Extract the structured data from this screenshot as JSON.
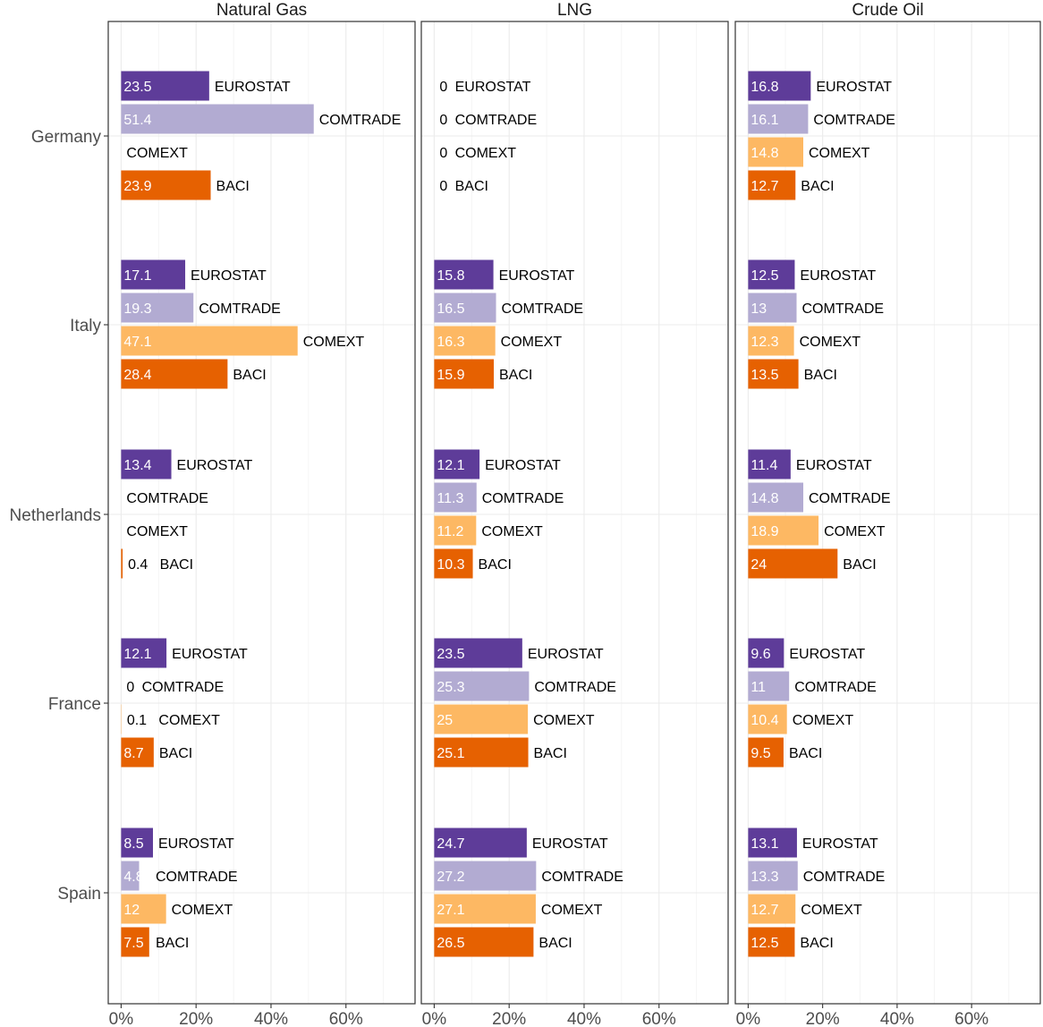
{
  "chart_data": {
    "type": "bar",
    "orientation": "horizontal",
    "facets": [
      "Natural Gas",
      "LNG",
      "Crude Oil"
    ],
    "categories": [
      "Germany",
      "Italy",
      "Netherlands",
      "France",
      "Spain"
    ],
    "xlim": [
      0,
      75
    ],
    "x_ticks": [
      0,
      20,
      40,
      60
    ],
    "x_tick_labels": [
      "0%",
      "20%",
      "40%",
      "60%"
    ],
    "grid": true,
    "colors": {
      "EUROSTAT": "#5e3c99",
      "COMTRADE": "#b2abd2",
      "COMEXT": "#fdb863",
      "BACI": "#e66101"
    },
    "series": [
      {
        "name": "EUROSTAT",
        "values": {
          "Natural Gas": [
            23.5,
            17.1,
            13.4,
            12.1,
            8.5
          ],
          "LNG": [
            0,
            15.8,
            12.1,
            23.5,
            24.7
          ],
          "Crude Oil": [
            16.8,
            12.5,
            11.4,
            9.6,
            13.1
          ]
        },
        "labels": {
          "Natural Gas": [
            "23.5",
            "17.1",
            "13.4",
            "12.1",
            "8.5"
          ],
          "LNG": [
            "0",
            "15.8",
            "12.1",
            "23.5",
            "24.7"
          ],
          "Crude Oil": [
            "16.8",
            "12.5",
            "11.4",
            "9.6",
            "13.1"
          ]
        }
      },
      {
        "name": "COMTRADE",
        "values": {
          "Natural Gas": [
            51.4,
            19.3,
            null,
            0,
            4.8
          ],
          "LNG": [
            0,
            16.5,
            11.3,
            25.3,
            27.2
          ],
          "Crude Oil": [
            16.1,
            13,
            14.8,
            11,
            13.3
          ]
        },
        "labels": {
          "Natural Gas": [
            "51.4",
            "19.3",
            "",
            "0",
            "4.8"
          ],
          "LNG": [
            "0",
            "16.5",
            "11.3",
            "25.3",
            "27.2"
          ],
          "Crude Oil": [
            "16.1",
            "13",
            "14.8",
            "11",
            "13.3"
          ]
        }
      },
      {
        "name": "COMEXT",
        "values": {
          "Natural Gas": [
            null,
            47.1,
            null,
            0.1,
            12
          ],
          "LNG": [
            0,
            16.3,
            11.2,
            25,
            27.1
          ],
          "Crude Oil": [
            14.8,
            12.3,
            18.9,
            10.4,
            12.7
          ]
        },
        "labels": {
          "Natural Gas": [
            "",
            "47.1",
            "",
            "0.1",
            "12"
          ],
          "LNG": [
            "0",
            "16.3",
            "11.2",
            "25",
            "27.1"
          ],
          "Crude Oil": [
            "14.8",
            "12.3",
            "18.9",
            "10.4",
            "12.7"
          ]
        }
      },
      {
        "name": "BACI",
        "values": {
          "Natural Gas": [
            23.9,
            28.4,
            0.4,
            8.7,
            7.5
          ],
          "LNG": [
            0,
            15.9,
            10.3,
            25.1,
            26.5
          ],
          "Crude Oil": [
            12.7,
            13.5,
            24,
            9.5,
            12.5
          ]
        },
        "labels": {
          "Natural Gas": [
            "23.9",
            "28.4",
            "0.4",
            "8.7",
            "7.5"
          ],
          "LNG": [
            "0",
            "15.9",
            "10.3",
            "25.1",
            "26.5"
          ],
          "Crude Oil": [
            "12.7",
            "13.5",
            "24",
            "9.5",
            "12.5"
          ]
        }
      }
    ]
  }
}
